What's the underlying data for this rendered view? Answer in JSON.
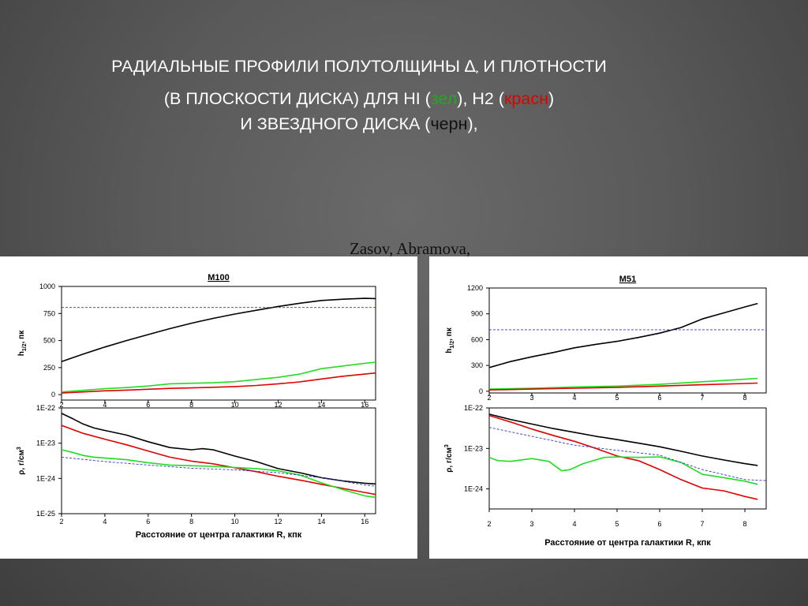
{
  "slide": {
    "title_line1": "РАДИАЛЬНЫЕ ПРОФИЛИ ПОЛУТОЛЩИНЫ",
    "delta_symbol": "∆",
    "delta_sub": "*",
    "title_line1_end": "И ПЛОТНОСТИ",
    "title_line2_start": "(В ПЛОСКОСТИ ДИСКА) ДЛЯ HI (",
    "green_word": "зел",
    "title_line2_mid": "), H2 (",
    "red_word": "красн",
    "title_line2_end": ")",
    "title_line3_start": "И ЗВЕЗДНОГО ДИСКА (",
    "black_word": "черн",
    "title_line3_end": "),",
    "authors": "Zasov, Abramova,"
  },
  "colors": {
    "stellar": "#000000",
    "h2": "#e00000",
    "hi": "#22dd22",
    "reference": "#3333cc"
  },
  "chart_data": [
    {
      "type": "line",
      "title": "M100",
      "xlabel": "Расстояние от центра галактики R, кпк",
      "x_ticks": [
        "2",
        "4",
        "6",
        "8",
        "10",
        "12",
        "14",
        "16"
      ],
      "xlim": [
        2,
        16.5
      ],
      "panels": [
        {
          "ylabel": "h1/2, пк",
          "ylabel_main": "h",
          "ylabel_sub": "1/2",
          "ylabel_rest": ", пк",
          "y_scale": "linear",
          "ylim": [
            -50,
            1000
          ],
          "y_ticks": [
            "0",
            "250",
            "500",
            "750",
            "1000"
          ],
          "series": [
            {
              "color": "black",
              "x": [
                2,
                3,
                4,
                5,
                6,
                7,
                8,
                9,
                10,
                11,
                12,
                13,
                14,
                15,
                16,
                16.5
              ],
              "y": [
                305,
                375,
                440,
                500,
                555,
                610,
                660,
                705,
                745,
                780,
                815,
                845,
                870,
                882,
                890,
                888
              ]
            },
            {
              "color": "green",
              "x": [
                2,
                3,
                4,
                5,
                6,
                7,
                8,
                9,
                10,
                11,
                12,
                13,
                14,
                15,
                16,
                16.5
              ],
              "y": [
                25,
                40,
                55,
                65,
                80,
                100,
                105,
                110,
                120,
                140,
                160,
                190,
                240,
                265,
                290,
                300
              ]
            },
            {
              "color": "red",
              "x": [
                2,
                3,
                4,
                5,
                6,
                7,
                8,
                9,
                10,
                11,
                12,
                13,
                14,
                15,
                16,
                16.5
              ],
              "y": [
                15,
                25,
                35,
                42,
                50,
                58,
                62,
                68,
                75,
                85,
                100,
                118,
                145,
                170,
                190,
                200
              ]
            },
            {
              "color": "blue-dashed",
              "x": [
                2,
                16.5
              ],
              "y": [
                805,
                805
              ]
            }
          ]
        },
        {
          "ylabel": "ρ, г/см3",
          "ylabel_main": "ρ, г/см",
          "ylabel_sup": "3",
          "y_scale": "log",
          "ylim": [
            1e-25,
            1e-22
          ],
          "y_ticks": [
            "1E-25",
            "1E-24",
            "1E-23",
            "1E-22"
          ],
          "series": [
            {
              "color": "black",
              "x": [
                2,
                2.5,
                3,
                3.5,
                4,
                5,
                6,
                7,
                8,
                8.5,
                9,
                10,
                11,
                12,
                13,
                14,
                15,
                16,
                16.5
              ],
              "y": [
                7e-23,
                5e-23,
                3.5e-23,
                2.7e-23,
                2.3e-23,
                1.7e-23,
                1.1e-23,
                7.5e-24,
                6.5e-24,
                7e-24,
                6.5e-24,
                4.3e-24,
                3e-24,
                1.9e-24,
                1.45e-24,
                1.05e-24,
                8.5e-25,
                7.3e-25,
                7e-25
              ]
            },
            {
              "color": "red",
              "x": [
                2,
                3,
                4,
                5,
                6,
                7,
                8,
                9,
                10,
                11,
                12,
                13,
                14,
                15,
                16,
                16.5
              ],
              "y": [
                3.2e-23,
                1.9e-23,
                1.3e-23,
                9e-24,
                6e-24,
                4e-24,
                3.1e-24,
                2.6e-24,
                2e-24,
                1.55e-24,
                1.15e-24,
                9e-25,
                6.8e-25,
                5.2e-25,
                4e-25,
                3.5e-25
              ]
            },
            {
              "color": "green",
              "x": [
                2,
                2.5,
                3,
                3.5,
                4,
                5,
                6,
                7,
                8,
                9,
                10,
                11,
                12,
                13,
                14,
                15,
                16,
                16.5
              ],
              "y": [
                6.5e-24,
                5.5e-24,
                4.5e-24,
                4e-24,
                3.8e-24,
                3.4e-24,
                2.8e-24,
                2.4e-24,
                2.3e-24,
                2.2e-24,
                2.05e-24,
                1.9e-24,
                1.65e-24,
                1.25e-24,
                7.5e-25,
                4.8e-25,
                3.2e-25,
                2.9e-25
              ]
            },
            {
              "color": "blue-dashed",
              "x": [
                2,
                4,
                6,
                8,
                10,
                12,
                14,
                16,
                16.5
              ],
              "y": [
                4e-24,
                3e-24,
                2.4e-24,
                1.95e-24,
                1.75e-24,
                1.45e-24,
                1.05e-24,
                6.5e-25,
                6e-25
              ]
            }
          ]
        }
      ]
    },
    {
      "type": "line",
      "title": "M51",
      "xlabel": "Расстояние от центра галактики R, кпк",
      "x_ticks": [
        "2",
        "3",
        "4",
        "5",
        "6",
        "7",
        "8"
      ],
      "xlim": [
        2,
        8.5
      ],
      "panels": [
        {
          "ylabel": "h1/2, пк",
          "ylabel_main": "h",
          "ylabel_sub": "1/2",
          "ylabel_rest": ", пк",
          "y_scale": "linear",
          "ylim": [
            -20,
            1200
          ],
          "y_ticks": [
            "0",
            "300",
            "600",
            "900",
            "1200"
          ],
          "series": [
            {
              "color": "black",
              "x": [
                2,
                2.5,
                3,
                3.5,
                4,
                4.5,
                5,
                5.5,
                6,
                6.5,
                7,
                7.5,
                8,
                8.3
              ],
              "y": [
                275,
                345,
                400,
                450,
                505,
                545,
                580,
                625,
                675,
                740,
                840,
                910,
                980,
                1020
              ]
            },
            {
              "color": "green",
              "x": [
                2,
                3,
                4,
                5,
                6,
                7,
                8,
                8.3
              ],
              "y": [
                25,
                35,
                50,
                60,
                80,
                110,
                140,
                150
              ]
            },
            {
              "color": "red",
              "x": [
                2,
                3,
                4,
                5,
                6,
                7,
                8,
                8.3
              ],
              "y": [
                15,
                25,
                35,
                45,
                60,
                75,
                90,
                95
              ]
            },
            {
              "color": "blue-dashed",
              "x": [
                2,
                8.5
              ],
              "y": [
                715,
                715
              ]
            }
          ]
        },
        {
          "ylabel": "ρ, г/см3",
          "ylabel_main": "ρ, г/см",
          "ylabel_sup": "3",
          "y_scale": "log",
          "ylim": [
            3.2e-25,
            1e-22
          ],
          "y_ticks": [
            "1E-24",
            "1E-23",
            "1E-22"
          ],
          "series": [
            {
              "color": "black",
              "x": [
                2,
                2.5,
                3,
                3.5,
                4,
                4.5,
                5,
                5.5,
                6,
                6.5,
                7,
                7.5,
                8,
                8.3
              ],
              "y": [
                7e-23,
                5.2e-23,
                4e-23,
                3.1e-23,
                2.5e-23,
                2e-23,
                1.65e-23,
                1.35e-23,
                1.1e-23,
                8.5e-24,
                6.5e-24,
                5.2e-24,
                4.2e-24,
                3.8e-24
              ]
            },
            {
              "color": "red",
              "x": [
                2,
                2.5,
                3,
                3.5,
                4,
                4.5,
                5,
                5.5,
                6,
                6.5,
                7,
                7.5,
                8,
                8.3
              ],
              "y": [
                6.5e-23,
                4.5e-23,
                3e-23,
                2.1e-23,
                1.5e-23,
                1e-23,
                6.5e-24,
                5e-24,
                3e-24,
                1.7e-24,
                1.05e-24,
                9e-25,
                6.5e-25,
                5.5e-25
              ]
            },
            {
              "color": "green",
              "x": [
                2,
                2.2,
                2.5,
                3,
                3.4,
                3.7,
                3.9,
                4.2,
                4.7,
                5,
                5.5,
                6,
                6.5,
                7,
                7.5,
                8,
                8.3
              ],
              "y": [
                6e-24,
                5e-24,
                4.8e-24,
                5.6e-24,
                4.8e-24,
                2.8e-24,
                3e-24,
                4.2e-24,
                6e-24,
                6.2e-24,
                6e-24,
                6.2e-24,
                4.5e-24,
                2.3e-24,
                1.9e-24,
                1.55e-24,
                1.3e-24
              ]
            },
            {
              "color": "blue-dashed",
              "x": [
                2,
                3,
                4,
                5,
                6,
                7,
                8,
                8.5
              ],
              "y": [
                3.3e-23,
                2e-23,
                1.2e-23,
                9e-24,
                6.8e-24,
                3e-24,
                1.7e-24,
                1.6e-24
              ]
            }
          ]
        }
      ]
    }
  ]
}
